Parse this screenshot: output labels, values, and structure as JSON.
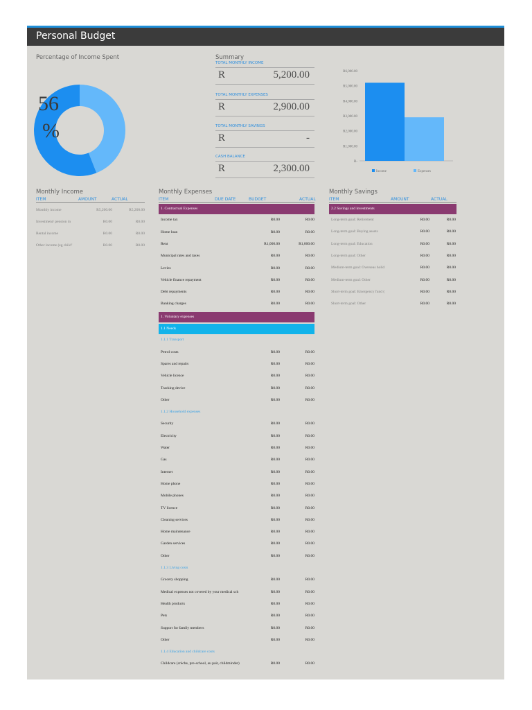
{
  "title": "Personal Budget",
  "pct_title": "Percentage of Income Spent",
  "pct_value": "56",
  "pct_sign": "%",
  "pct_fraction": 0.56,
  "summary": {
    "title": "Summary",
    "items": [
      {
        "label": "TOTAL MONTHLY INCOME",
        "currency": "R",
        "value": "5,200.00"
      },
      {
        "label": "TOTAL MONTHLY EXPENSES",
        "currency": "R",
        "value": "2,900.00"
      },
      {
        "label": "TOTAL MONTHLY SAVINGS",
        "currency": "R",
        "value": "-"
      },
      {
        "label": "CASH BALANCE",
        "currency": "R",
        "value": "2,300.00"
      }
    ]
  },
  "chart_data": {
    "type": "bar",
    "categories": [
      "Income",
      "Expenses"
    ],
    "values": [
      5200,
      2900
    ],
    "ylim": [
      0,
      6000
    ],
    "yticks": [
      0,
      1000,
      2000,
      3000,
      4000,
      5000,
      6000
    ],
    "ytick_labels": [
      "R-",
      "R1,000.00",
      "R2,000.00",
      "R3,000.00",
      "R4,000.00",
      "R5,000.00",
      "R6,000.00"
    ],
    "legend": [
      "Income",
      "Expenses"
    ],
    "legend_position": "bottom",
    "colors": [
      "#1c8ef0",
      "#64b8fa"
    ]
  },
  "colors": {
    "accent": "#2f8fde",
    "band_purple": "#8a3a70",
    "band_cyan": "#12b3ea",
    "donut_dark": "#1c8ef0",
    "donut_light": "#64b8fa"
  },
  "income": {
    "title": "Monthly Income",
    "headers": [
      "ITEM",
      "AMOUNT",
      "ACTUAL"
    ],
    "rows": [
      [
        "Monthly income",
        "R5,200.00",
        "R5,200.00"
      ],
      [
        "Investment/ pension in",
        "R0.00",
        "R0.00"
      ],
      [
        "Rental income",
        "R0.00",
        "R0.00"
      ],
      [
        "Other income (eg child’",
        "R0.00",
        "R0.00"
      ]
    ]
  },
  "expenses": {
    "title": "Monthly Expenses",
    "headers": [
      "ITEM",
      "DUE DATE",
      "BUDGET",
      "ACTUAL"
    ],
    "rows": [
      {
        "kind": "band",
        "color": "purple",
        "label": "1. Contractual Expenses"
      },
      {
        "kind": "row",
        "item": "Income tax",
        "budget": "R0.00",
        "actual": "R0.00"
      },
      {
        "kind": "row",
        "item": "Home loan",
        "budget": "R0.00",
        "actual": "R0.00"
      },
      {
        "kind": "row",
        "item": "Rent",
        "budget": "R1,000.00",
        "actual": "R1,000.00"
      },
      {
        "kind": "row",
        "item": "Municipal rates and taxes",
        "budget": "R0.00",
        "actual": "R0.00"
      },
      {
        "kind": "row",
        "item": "Levies",
        "budget": "R0.00",
        "actual": "R0.00"
      },
      {
        "kind": "row",
        "item": "Vehicle finance repayment",
        "budget": "R0.00",
        "actual": "R0.00"
      },
      {
        "kind": "row",
        "item": "Debt repayments",
        "budget": "R0.00",
        "actual": "R0.00"
      },
      {
        "kind": "row",
        "item": "Banking charges",
        "budget": "R0.00",
        "actual": "R0.00"
      },
      {
        "kind": "band",
        "color": "purple",
        "label": "1. Voluntary expenses"
      },
      {
        "kind": "band",
        "color": "cyan",
        "label": "1.1 Needs"
      },
      {
        "kind": "sub",
        "label": "1.1.1 Transport"
      },
      {
        "kind": "row",
        "item": "Petrol costs",
        "budget": "R0.00",
        "actual": "R0.00"
      },
      {
        "kind": "row",
        "item": "Spares and repairs",
        "budget": "R0.00",
        "actual": "R0.00"
      },
      {
        "kind": "row",
        "item": "Vehicle licence",
        "budget": "R0.00",
        "actual": "R0.00"
      },
      {
        "kind": "row",
        "item": "Tracking device",
        "budget": "R0.00",
        "actual": "R0.00"
      },
      {
        "kind": "row",
        "item": "Other",
        "budget": "R0.00",
        "actual": "R0.00"
      },
      {
        "kind": "sub",
        "label": "1.1.2 Household expenses"
      },
      {
        "kind": "row",
        "item": "Security",
        "budget": "R0.00",
        "actual": "R0.00"
      },
      {
        "kind": "row",
        "item": "Electricity",
        "budget": "R0.00",
        "actual": "R0.00"
      },
      {
        "kind": "row",
        "item": "Water",
        "budget": "R0.00",
        "actual": "R0.00"
      },
      {
        "kind": "row",
        "item": "Gas",
        "budget": "R0.00",
        "actual": "R0.00"
      },
      {
        "kind": "row",
        "item": "Internet",
        "budget": "R0.00",
        "actual": "R0.00"
      },
      {
        "kind": "row",
        "item": "Home phone",
        "budget": "R0.00",
        "actual": "R0.00"
      },
      {
        "kind": "row",
        "item": "Mobile phones",
        "budget": "R0.00",
        "actual": "R0.00"
      },
      {
        "kind": "row",
        "item": "TV licence",
        "budget": "R0.00",
        "actual": "R0.00"
      },
      {
        "kind": "row",
        "item": "Cleaning services",
        "budget": "R0.00",
        "actual": "R0.00"
      },
      {
        "kind": "row",
        "item": "Home maintenance",
        "budget": "R0.00",
        "actual": "R0.00"
      },
      {
        "kind": "row",
        "item": "Garden services",
        "budget": "R0.00",
        "actual": "R0.00"
      },
      {
        "kind": "row",
        "item": "Other",
        "budget": "R0.00",
        "actual": "R0.00"
      },
      {
        "kind": "sub",
        "label": "1.1.3 Living costs"
      },
      {
        "kind": "row",
        "item": "Grocery shopping",
        "budget": "R0.00",
        "actual": "R0.00"
      },
      {
        "kind": "row",
        "item": "Medical expenses not covered by your medical sch",
        "budget": "R0.00",
        "actual": "R0.00"
      },
      {
        "kind": "row",
        "item": "Health products",
        "budget": "R0.00",
        "actual": "R0.00"
      },
      {
        "kind": "row",
        "item": "Pets",
        "budget": "R0.00",
        "actual": "R0.00"
      },
      {
        "kind": "row",
        "item": "Support for family members",
        "budget": "R0.00",
        "actual": "R0.00"
      },
      {
        "kind": "row",
        "item": "Other",
        "budget": "R0.00",
        "actual": "R0.00"
      },
      {
        "kind": "sub",
        "label": "1.1.4 Education and childcare costs"
      },
      {
        "kind": "row",
        "item": "Childcare (crèche, pre-school, au pair, childminder)",
        "budget": "R0.00",
        "actual": "R0.00"
      }
    ]
  },
  "savings": {
    "title": "Monthly Savings",
    "headers": [
      "ITEM",
      "AMOUNT",
      "ACTUAL"
    ],
    "band": "2.2 Savings and investments",
    "rows": [
      [
        "Long-term goal: Retirement",
        "R0.00",
        "R0.00"
      ],
      [
        "Long-term goal: Buying assets",
        "R0.00",
        "R0.00"
      ],
      [
        "Long-term goal: Education",
        "R0.00",
        "R0.00"
      ],
      [
        "Long-term goal: Other",
        "R0.00",
        "R0.00"
      ],
      [
        "Medium-term goal: Overseas holid",
        "R0.00",
        "R0.00"
      ],
      [
        "Medium-term goal: Other",
        "R0.00",
        "R0.00"
      ],
      [
        "Short-term goal: Emergency fund (",
        "R0.00",
        "R0.00"
      ],
      [
        "Short-term goal: Other",
        "R0.00",
        "R0.00"
      ]
    ]
  }
}
